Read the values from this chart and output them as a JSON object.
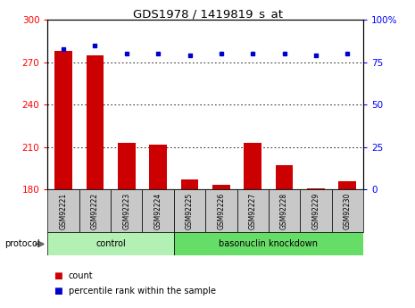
{
  "title": "GDS1978 / 1419819_s_at",
  "samples": [
    "GSM92221",
    "GSM92222",
    "GSM92223",
    "GSM92224",
    "GSM92225",
    "GSM92226",
    "GSM92227",
    "GSM92228",
    "GSM92229",
    "GSM92230"
  ],
  "count_values": [
    278,
    275,
    213,
    212,
    187,
    183,
    213,
    197,
    181,
    186
  ],
  "percentile_values": [
    83,
    85,
    80,
    80,
    79,
    80,
    80,
    80,
    79,
    80
  ],
  "groups": [
    {
      "label": "control",
      "start": 0,
      "end": 4,
      "color": "#b3f0b3"
    },
    {
      "label": "basonuclin knockdown",
      "start": 4,
      "end": 10,
      "color": "#66dd66"
    }
  ],
  "ylim_left": [
    180,
    300
  ],
  "ylim_right": [
    0,
    100
  ],
  "yticks_left": [
    180,
    210,
    240,
    270,
    300
  ],
  "yticks_right": [
    0,
    25,
    50,
    75,
    100
  ],
  "bar_color": "#cc0000",
  "dot_color": "#0000cc",
  "label_bg": "#c8c8c8",
  "protocol_label": "protocol",
  "legend_count": "count",
  "legend_percentile": "percentile rank within the sample"
}
